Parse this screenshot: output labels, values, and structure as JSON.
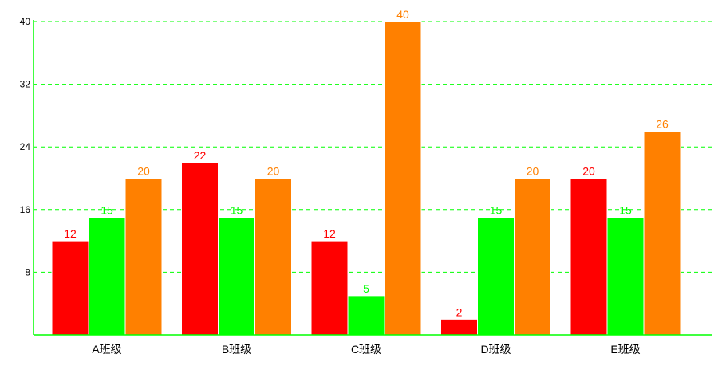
{
  "chart_data": {
    "type": "bar",
    "categories": [
      "A班级",
      "B班级",
      "C班级",
      "D班级",
      "E班级"
    ],
    "series": [
      {
        "values": [
          12,
          22,
          12,
          2,
          20
        ],
        "color": "#ff0000"
      },
      {
        "values": [
          15,
          15,
          5,
          15,
          15
        ],
        "color": "#00ff00"
      },
      {
        "values": [
          20,
          20,
          40,
          20,
          26
        ],
        "color": "#ff8000"
      }
    ],
    "y_ticks": [
      8,
      16,
      24,
      32,
      40
    ],
    "ylim": [
      0,
      40
    ],
    "grid": true,
    "grid_color": "#00ff00",
    "axis_color": "#00ff00",
    "data_labels": true,
    "legend": false
  }
}
